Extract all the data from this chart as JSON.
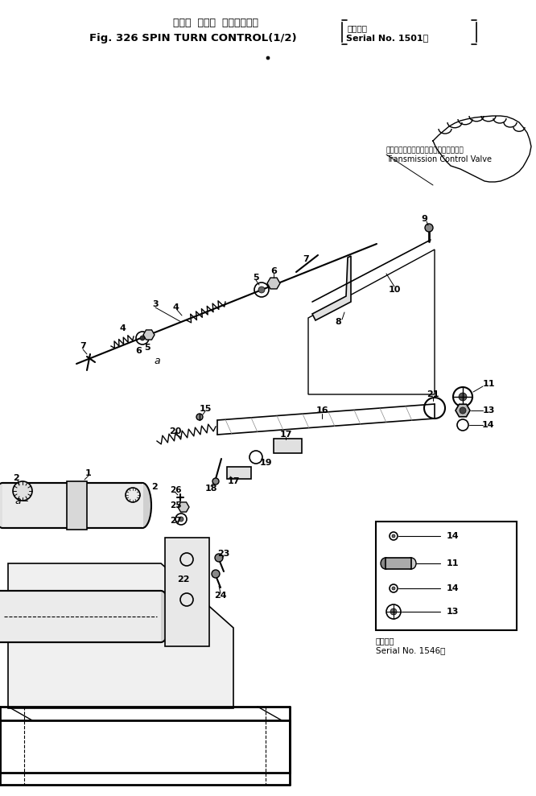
{
  "title_jp": "スピン  ターン  コントロール",
  "title_en": "Fig. 326 SPIN TURN CONTROL(1/2)",
  "serial_jp": "適用号機",
  "serial_en": "Serial No. 1501～",
  "transmission_jp": "トランスミッションコントロールバルブ",
  "transmission_en": "Transmission Control Valve",
  "serial2_jp": "適用号機",
  "serial2_en": "Serial No. 1546～",
  "bg_color": "#ffffff",
  "line_color": "#000000",
  "fig_width": 6.66,
  "fig_height": 9.89,
  "dpi": 100
}
